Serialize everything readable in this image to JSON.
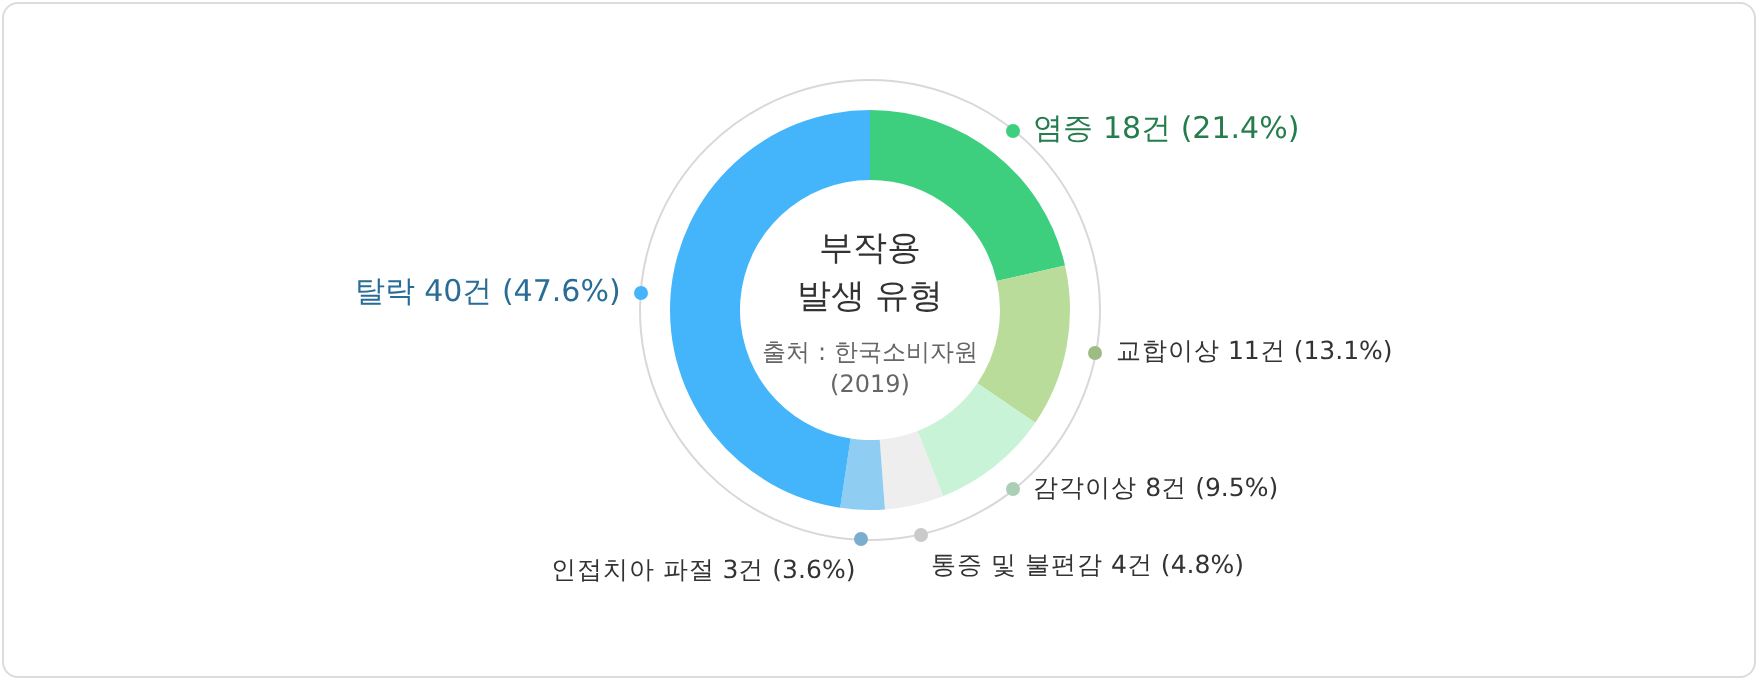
{
  "chart_data": {
    "type": "donut",
    "title": "부작용\n발생 유형",
    "annotations": [
      "출처 : 한국소비자원\n(2019)"
    ],
    "categories": [
      "염증",
      "교합이상",
      "감각이상",
      "통증 및 불편감",
      "인접치아 파절",
      "탈락"
    ],
    "values": [
      18,
      11,
      8,
      4,
      3,
      40
    ],
    "value_labels": [
      "18건 (21.4%)",
      "11건 (13.1%)",
      "8건 (9.5%)",
      "4건 (4.8%)",
      "3건 (3.6%)",
      "40건 (47.6%)"
    ],
    "colors": [
      "#3ecf7e",
      "#b9dc9a",
      "#c9f3d6",
      "#eeeeee",
      "#90cdf2",
      "#45b5fb"
    ]
  }
}
